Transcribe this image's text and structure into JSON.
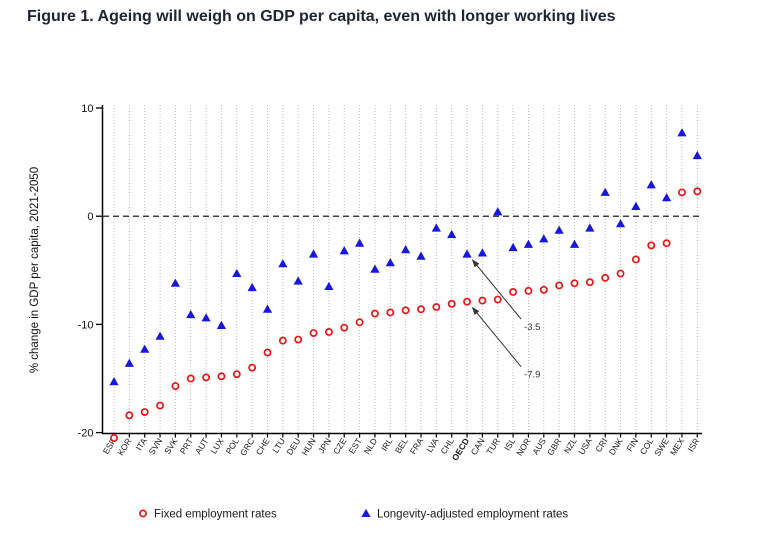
{
  "title": "Figure 1. Ageing will weigh on GDP per capita, even with longer working lives",
  "chart_data": {
    "type": "scatter",
    "title": "",
    "xlabel": "",
    "ylabel": "% change in GDP per capita, 2021-2050",
    "ylim": [
      -20,
      10
    ],
    "yticks": [
      10,
      0,
      -10,
      -20
    ],
    "zero_reference_line": true,
    "grid": "vertical-dotted",
    "legend_position": "bottom",
    "bold_category": "OECD",
    "categories": [
      "ESP",
      "KOR",
      "ITA",
      "SVN",
      "SVK",
      "PRT",
      "AUT",
      "LUX",
      "POL",
      "GRC",
      "CHE",
      "LTU",
      "DEU",
      "HUN",
      "JPN",
      "CZE",
      "EST",
      "NLD",
      "IRL",
      "BEL",
      "FRA",
      "LVA",
      "CHL",
      "OECD",
      "CAN",
      "TUR",
      "ISL",
      "NOR",
      "AUS",
      "GBR",
      "NZL",
      "USA",
      "CRI",
      "DNK",
      "FIN",
      "COL",
      "SWE",
      "MEX",
      "ISR"
    ],
    "series": [
      {
        "name": "Fixed employment rates",
        "marker": "open-circle",
        "color": "#e81616",
        "values": [
          -20.5,
          -18.4,
          -18.1,
          -17.5,
          -15.7,
          -15.0,
          -14.9,
          -14.8,
          -14.6,
          -14.0,
          -12.6,
          -11.5,
          -11.4,
          -10.8,
          -10.7,
          -10.3,
          -9.8,
          -9.0,
          -8.9,
          -8.7,
          -8.6,
          -8.4,
          -8.1,
          -7.9,
          -7.8,
          -7.7,
          -7.0,
          -6.9,
          -6.8,
          -6.4,
          -6.2,
          -6.1,
          -5.7,
          -5.3,
          -4.0,
          -2.7,
          -2.5,
          2.2,
          2.3
        ]
      },
      {
        "name": "Longevity-adjusted employment rates",
        "marker": "filled-triangle",
        "color": "#1717dd",
        "values": [
          -15.3,
          -13.6,
          -12.3,
          -11.1,
          -6.2,
          -9.1,
          -9.4,
          -10.1,
          -5.3,
          -6.6,
          -8.6,
          -4.4,
          -6.0,
          -3.5,
          -6.5,
          -3.2,
          -2.5,
          -4.9,
          -4.3,
          -3.1,
          -3.7,
          -1.1,
          -1.7,
          -3.5,
          -3.4,
          0.4,
          -2.9,
          -2.6,
          -2.1,
          -1.3,
          -2.6,
          -1.1,
          2.2,
          -0.7,
          0.9,
          2.9,
          1.7,
          7.7,
          5.6
        ]
      }
    ],
    "annotations": [
      {
        "text": "-3.5",
        "category": "OECD",
        "series_index": 1
      },
      {
        "text": "-7.9",
        "category": "OECD",
        "series_index": 0
      }
    ]
  }
}
